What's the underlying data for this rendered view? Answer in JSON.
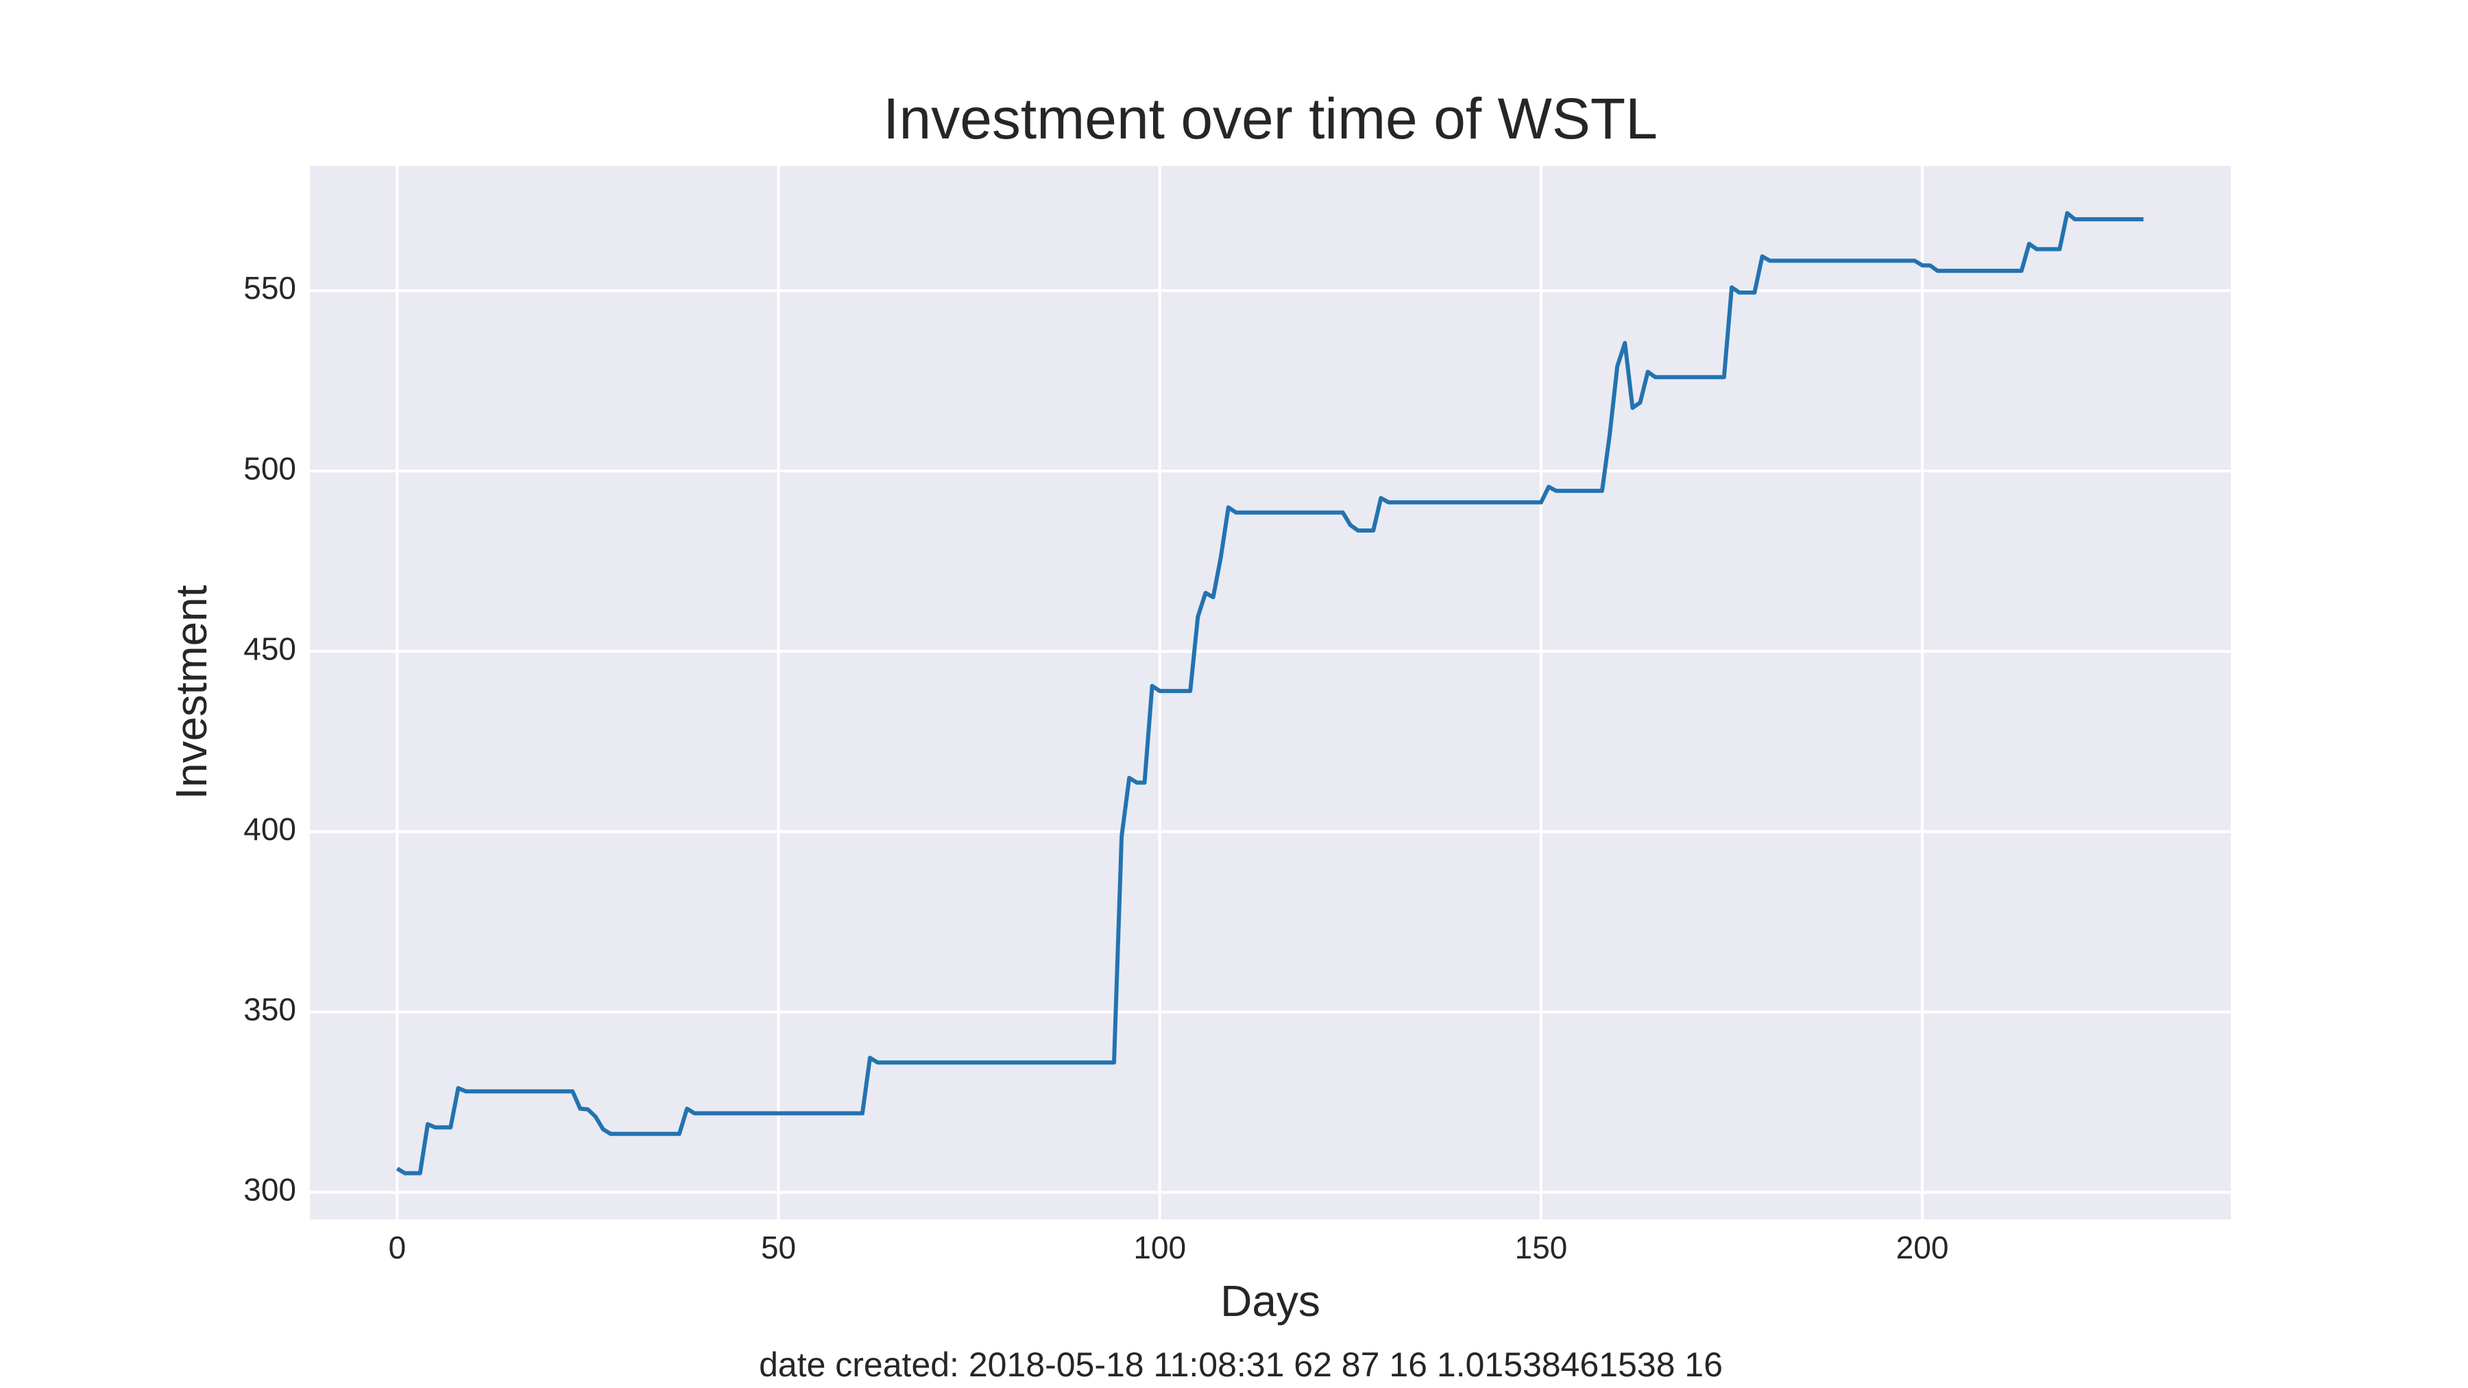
{
  "chart_data": {
    "type": "line",
    "title": "Investment over time of WSTL",
    "x_label": "Days",
    "y_label": "Investment",
    "footer": "date created: 2018-05-18 11:08:31 62 87 16 1.01538461538 16",
    "xlim": [
      -11.45,
      240.45
    ],
    "ylim": [
      292.5,
      584.6
    ],
    "xticks": [
      0,
      50,
      100,
      150,
      200
    ],
    "yticks": [
      300,
      350,
      400,
      450,
      500,
      550
    ],
    "grid": true,
    "background": "#eaeaf2",
    "series": [
      {
        "color": "#2373b0",
        "x": [
          0,
          1,
          3,
          4,
          5,
          7,
          8,
          9,
          23,
          24,
          25,
          26,
          27,
          28,
          37,
          38,
          39,
          61,
          62,
          63,
          94,
          95,
          96,
          97,
          98,
          99,
          100,
          104,
          105,
          106,
          107,
          108,
          109,
          110,
          124,
          125,
          126,
          128,
          129,
          130,
          150,
          151,
          152,
          158,
          159,
          160,
          161,
          162,
          163,
          164,
          165,
          174,
          175,
          176,
          178,
          179,
          180,
          199,
          200,
          201,
          202,
          213,
          214,
          215,
          218,
          219,
          220,
          229
        ],
        "values": [
          306.6,
          305.3,
          305.3,
          318.9,
          318,
          318,
          328.9,
          328,
          328,
          323.2,
          323,
          321,
          317.5,
          316.2,
          316.2,
          323.2,
          321.9,
          321.9,
          337.3,
          336,
          336,
          398.7,
          414.9,
          413.6,
          413.6,
          440.4,
          439,
          439,
          459.6,
          466.2,
          465,
          476,
          489.9,
          488.5,
          488.5,
          485,
          483.5,
          483.5,
          492.5,
          491.3,
          491.3,
          495.6,
          494.5,
          494.5,
          510,
          529,
          535.5,
          517.5,
          519,
          527.5,
          526,
          526,
          550.9,
          549.5,
          549.5,
          559.5,
          558.3,
          558.3,
          557,
          557,
          555.5,
          555.5,
          563,
          561.5,
          561.5,
          571.5,
          569.8,
          569.8
        ]
      }
    ]
  }
}
